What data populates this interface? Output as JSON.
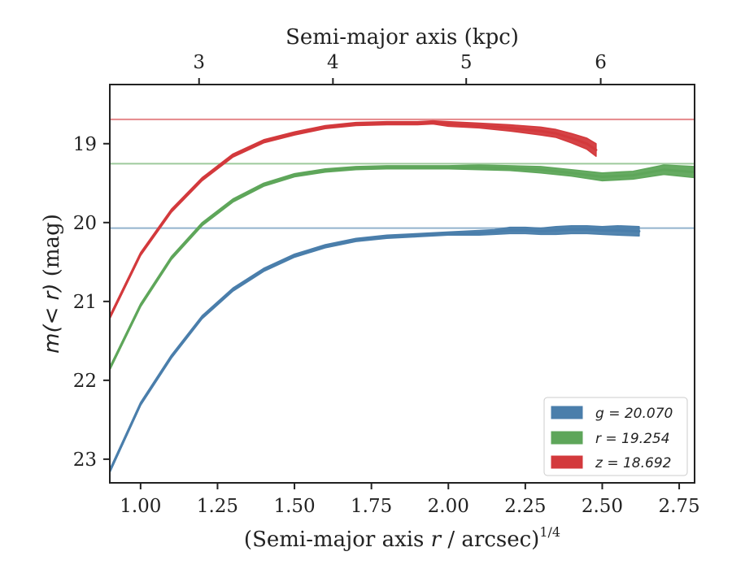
{
  "chart_data": {
    "type": "line",
    "xlabel_bottom": "(Semi-major axis r / arcsec)^1/4",
    "xlabel_bottom_parts": [
      "(Semi-major axis ",
      "r",
      " / arcsec)",
      "1/4"
    ],
    "xlabel_top": "Semi-major axis (kpc)",
    "ylabel": "m(< r) (mag)",
    "ylabel_parts": [
      "m",
      "(< r)",
      " (mag)"
    ],
    "xlim": [
      0.9,
      2.8
    ],
    "ylim": [
      23.3,
      18.25
    ],
    "y_inverted": true,
    "x_ticks": [
      1.0,
      1.25,
      1.5,
      1.75,
      2.0,
      2.25,
      2.5,
      2.75
    ],
    "x_tick_labels": [
      "1.00",
      "1.25",
      "1.50",
      "1.75",
      "2.00",
      "2.25",
      "2.50",
      "2.75"
    ],
    "y_ticks": [
      19,
      20,
      21,
      22,
      23
    ],
    "y_tick_labels": [
      "19",
      "20",
      "21",
      "22",
      "23"
    ],
    "top_ticks_x": [
      1.19,
      1.625,
      2.058,
      2.495
    ],
    "top_tick_labels": [
      "3",
      "4",
      "5",
      "6"
    ],
    "legend_position": "lower-right",
    "series": [
      {
        "name": "g = 20.070",
        "color": "#4a7eab",
        "asymptote": 20.07,
        "x": [
          0.9,
          1.0,
          1.1,
          1.2,
          1.3,
          1.4,
          1.5,
          1.6,
          1.7,
          1.8,
          1.9,
          2.0,
          2.1,
          2.15,
          2.2,
          2.25,
          2.3,
          2.35,
          2.4,
          2.45,
          2.5,
          2.55,
          2.62
        ],
        "y": [
          23.15,
          22.3,
          21.7,
          21.2,
          20.85,
          20.6,
          20.42,
          20.3,
          20.22,
          20.18,
          20.16,
          20.14,
          20.13,
          20.12,
          20.1,
          20.1,
          20.11,
          20.1,
          20.09,
          20.09,
          20.1,
          20.1,
          20.11
        ],
        "band": [
          0.02,
          0.02,
          0.02,
          0.02,
          0.02,
          0.02,
          0.02,
          0.02,
          0.02,
          0.02,
          0.02,
          0.02,
          0.03,
          0.03,
          0.04,
          0.04,
          0.04,
          0.05,
          0.05,
          0.05,
          0.05,
          0.06,
          0.06
        ]
      },
      {
        "name": "r = 19.254",
        "color": "#5ea65a",
        "asymptote": 19.254,
        "x": [
          0.9,
          1.0,
          1.1,
          1.2,
          1.3,
          1.4,
          1.5,
          1.6,
          1.7,
          1.8,
          1.9,
          2.0,
          2.1,
          2.2,
          2.3,
          2.4,
          2.5,
          2.6,
          2.7,
          2.8
        ],
        "y": [
          21.85,
          21.05,
          20.45,
          20.02,
          19.72,
          19.52,
          19.4,
          19.34,
          19.31,
          19.3,
          19.3,
          19.3,
          19.3,
          19.31,
          19.33,
          19.37,
          19.42,
          19.4,
          19.33,
          19.36
        ],
        "band": [
          0.02,
          0.02,
          0.02,
          0.02,
          0.02,
          0.02,
          0.02,
          0.02,
          0.02,
          0.02,
          0.02,
          0.02,
          0.03,
          0.03,
          0.04,
          0.04,
          0.05,
          0.05,
          0.06,
          0.07
        ]
      },
      {
        "name": "z = 18.692",
        "color": "#d3393c",
        "asymptote": 18.692,
        "x": [
          0.9,
          1.0,
          1.1,
          1.2,
          1.3,
          1.4,
          1.5,
          1.6,
          1.7,
          1.8,
          1.9,
          1.95,
          2.0,
          2.1,
          2.2,
          2.3,
          2.35,
          2.4,
          2.45,
          2.48
        ],
        "y": [
          21.2,
          20.4,
          19.85,
          19.45,
          19.15,
          18.97,
          18.87,
          18.79,
          18.75,
          18.74,
          18.74,
          18.73,
          18.75,
          18.77,
          18.8,
          18.84,
          18.87,
          18.93,
          19.0,
          19.08
        ],
        "band": [
          0.02,
          0.02,
          0.02,
          0.02,
          0.02,
          0.02,
          0.02,
          0.02,
          0.02,
          0.02,
          0.02,
          0.02,
          0.03,
          0.03,
          0.04,
          0.05,
          0.05,
          0.06,
          0.07,
          0.08
        ]
      }
    ]
  }
}
